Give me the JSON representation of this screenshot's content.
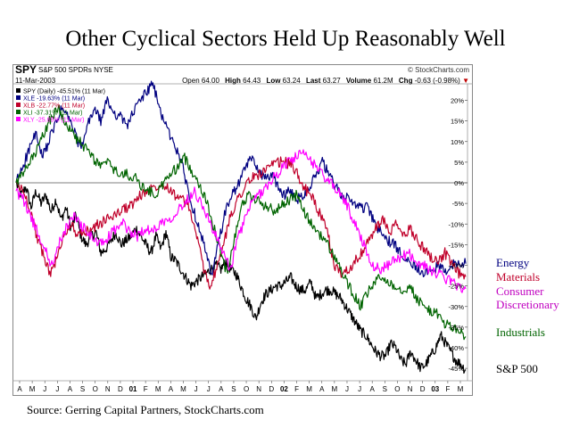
{
  "slide": {
    "title": "Other Cyclical Sectors Held Up Reasonably Well",
    "source": "Source: Gerring Capital Partners, StockCharts.com"
  },
  "header": {
    "ticker": "SPY",
    "name": "S&P 500 SPDRs  NYSE",
    "date": "11-Mar-2003",
    "credit": "© StockCharts.com",
    "open_label": "Open",
    "open": "64.00",
    "high_label": "High",
    "high": "64.43",
    "low_label": "Low",
    "low": "63.24",
    "last_label": "Last",
    "last": "63.27",
    "volume_label": "Volume",
    "volume": "61.2M",
    "chg_label": "Chg",
    "chg": "-0.63 (-0.98%)",
    "chg_arrow": "▼"
  },
  "right_labels": [
    {
      "text": "Energy",
      "color": "#000080"
    },
    {
      "text": "Materials",
      "color": "#c0002a"
    },
    {
      "text": "Consumer",
      "color": "#c000c0"
    },
    {
      "text": "Discretionary",
      "color": "#c000c0"
    },
    {
      "text": "Industrials",
      "color": "#006400"
    },
    {
      "text": "S&P 500",
      "color": "#000000"
    }
  ],
  "chart_data": {
    "type": "line",
    "y_unit": "%",
    "ylim": [
      -48,
      24
    ],
    "y_ticks": [
      20,
      15,
      10,
      5,
      0,
      -5,
      -10,
      -15,
      -20,
      -25,
      -30,
      -35,
      -40,
      -45
    ],
    "x_tick_labels": [
      "A",
      "M",
      "J",
      "J",
      "A",
      "S",
      "O",
      "N",
      "D",
      "01",
      "F",
      "M",
      "A",
      "M",
      "J",
      "J",
      "A",
      "S",
      "O",
      "N",
      "D",
      "02",
      "F",
      "M",
      "A",
      "M",
      "J",
      "J",
      "A",
      "S",
      "O",
      "N",
      "D",
      "03",
      "F",
      "M"
    ],
    "x_bold_ticks": [
      "01",
      "02",
      "03"
    ],
    "grid": false,
    "baseline": 0,
    "legend_position": "top-left",
    "series": [
      {
        "name": "SPY (Daily) -45.51% (11 Mar)",
        "color": "#000000",
        "values": [
          0,
          -3,
          -1,
          -6,
          -2,
          -5,
          -3,
          -7,
          -4,
          -9,
          -6,
          -11,
          -8,
          -13,
          -15,
          -13,
          -12,
          -17,
          -16,
          -14,
          -12,
          -15,
          -14,
          -13,
          -11,
          -13,
          -15,
          -17,
          -13,
          -16,
          -12,
          -18,
          -19,
          -21,
          -23,
          -25,
          -24,
          -23,
          -22,
          -21,
          -20,
          -21,
          -19,
          -21,
          -22,
          -25,
          -28,
          -30,
          -33,
          -29,
          -27,
          -26,
          -25,
          -25,
          -24,
          -23,
          -25,
          -26,
          -26,
          -24,
          -28,
          -27,
          -26,
          -26,
          -27,
          -28,
          -30,
          -32,
          -34,
          -36,
          -37,
          -39,
          -41,
          -42,
          -42,
          -39,
          -40,
          -43,
          -44,
          -41,
          -43,
          -45,
          -44,
          -42,
          -40,
          -37,
          -39,
          -41,
          -43,
          -44,
          -45.5
        ]
      },
      {
        "name": "XLE -19.63% (11 Mar)",
        "color": "#000080",
        "values": [
          0,
          4,
          8,
          12,
          6,
          10,
          14,
          18,
          16,
          12,
          8,
          14,
          18,
          15,
          20,
          17,
          16,
          14,
          17,
          20,
          22,
          24,
          18,
          14,
          10,
          7,
          1,
          -6,
          -10,
          -16,
          -23,
          -15,
          -8,
          -3,
          -1,
          3,
          6,
          4,
          1,
          2,
          0,
          -3,
          -2,
          -4,
          -3,
          -1,
          2,
          5,
          2,
          -1,
          -3,
          -4,
          -5,
          -6,
          -6,
          -10,
          -12,
          -14,
          -15,
          -17,
          -18,
          -20,
          -21,
          -22,
          -21,
          -20,
          -22,
          -20,
          -19,
          -19.6
        ]
      },
      {
        "name": "XLB -22.77% (11 Mar)",
        "color": "#c0002a",
        "values": [
          0,
          -2,
          -6,
          -13,
          -18,
          -22,
          -18,
          -12,
          -10,
          -13,
          -12,
          -11,
          -10,
          -9,
          -8,
          -7,
          -6,
          -5,
          -3,
          -2,
          -1,
          0,
          -1,
          -3,
          -4,
          -6,
          -12,
          -20,
          -25,
          -21,
          -15,
          -8,
          -4,
          -1,
          1,
          2,
          3,
          4,
          5,
          5,
          4,
          1,
          -2,
          -4,
          -8,
          -12,
          -20,
          -22,
          -21,
          -19,
          -17,
          -14,
          -11,
          -9,
          -12,
          -10,
          -13,
          -11,
          -14,
          -16,
          -18,
          -19,
          -17,
          -20,
          -22,
          -22.8
        ]
      },
      {
        "name": "XLI -37.31% (11 Mar)",
        "color": "#006400",
        "values": [
          0,
          2,
          5,
          8,
          12,
          16,
          18,
          15,
          12,
          10,
          8,
          6,
          4,
          5,
          3,
          2,
          2,
          1,
          -1,
          -2,
          -3,
          0,
          2,
          4,
          6,
          3,
          0,
          -4,
          -10,
          -16,
          -22,
          -14,
          -6,
          -3,
          -4,
          -5,
          -6,
          -7,
          -5,
          -4,
          -3,
          -7,
          -10,
          -12,
          -14,
          -17,
          -20,
          -24,
          -27,
          -30,
          -27,
          -24,
          -23,
          -24,
          -25,
          -26,
          -25,
          -28,
          -30,
          -31,
          -32,
          -34,
          -35,
          -36,
          -37.3
        ]
      },
      {
        "name": "XLY -25.65% (11 Mar)",
        "color": "#ff00ff",
        "values": [
          -2,
          -4,
          -8,
          -12,
          -16,
          -20,
          -15,
          -11,
          -8,
          -10,
          -12,
          -14,
          -15,
          -13,
          -11,
          -10,
          -12,
          -13,
          -11,
          -12,
          -10,
          -9,
          -8,
          -6,
          -4,
          -2,
          -5,
          -9,
          -13,
          -17,
          -21,
          -14,
          -9,
          -5,
          -3,
          -1,
          1,
          3,
          5,
          6,
          7,
          6,
          4,
          2,
          0,
          -2,
          -4,
          -8,
          -12,
          -16,
          -20,
          -21,
          -20,
          -19,
          -18,
          -17,
          -19,
          -20,
          -21,
          -22,
          -23,
          -24,
          -25,
          -25.7
        ]
      }
    ]
  }
}
